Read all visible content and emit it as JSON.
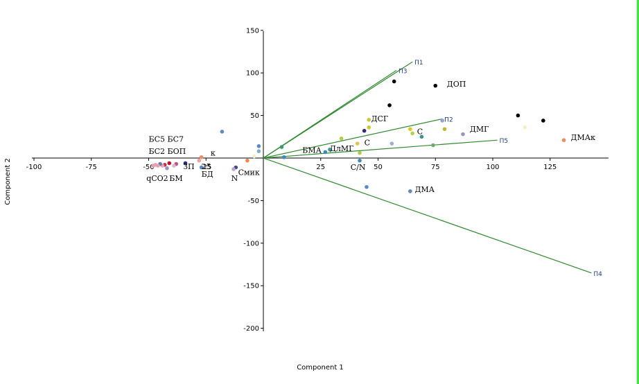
{
  "chart_data": {
    "type": "scatter",
    "title": "",
    "xlabel": "Component 1",
    "ylabel": "Component 2",
    "xlim": [
      -100,
      150
    ],
    "ylim": [
      -200,
      150
    ],
    "x_ticks": [
      -100,
      -75,
      -50,
      -25,
      25,
      50,
      75,
      100,
      125
    ],
    "y_ticks": [
      150,
      100,
      50,
      -50,
      -100,
      -150,
      -200
    ],
    "grid": false,
    "legend": "none",
    "vector_color": "#2e8b2e",
    "vectors": [
      {
        "label": "П1",
        "x": 65,
        "y": 113
      },
      {
        "label": "П3",
        "x": 58,
        "y": 103
      },
      {
        "label": "П2",
        "x": 78,
        "y": 46
      },
      {
        "label": "П5",
        "x": 102,
        "y": 21
      },
      {
        "label": "П4",
        "x": 143,
        "y": -135
      }
    ],
    "points": [
      {
        "x": 57,
        "y": 90,
        "color": "#000000"
      },
      {
        "x": 75,
        "y": 85,
        "color": "#000000"
      },
      {
        "x": 55,
        "y": 62,
        "color": "#000000"
      },
      {
        "x": 111,
        "y": 50,
        "color": "#000000"
      },
      {
        "x": 122,
        "y": 44,
        "color": "#000000"
      },
      {
        "x": 46,
        "y": 45,
        "color": "#c8c832"
      },
      {
        "x": 46,
        "y": 36,
        "color": "#c8c832"
      },
      {
        "x": 44,
        "y": 32,
        "color": "#2c2c80"
      },
      {
        "x": 78,
        "y": 44,
        "color": "#9aa0d8"
      },
      {
        "x": 64,
        "y": 34,
        "color": "#e6c41e"
      },
      {
        "x": 65,
        "y": 29,
        "color": "#b8d048"
      },
      {
        "x": 69,
        "y": 25,
        "color": "#3b8f8f"
      },
      {
        "x": 79,
        "y": 34,
        "color": "#c8b432"
      },
      {
        "x": 87,
        "y": 28,
        "color": "#9a90c8"
      },
      {
        "x": 114,
        "y": 36,
        "color": "#f5f0c8"
      },
      {
        "x": 131,
        "y": 21,
        "color": "#f08a60"
      },
      {
        "x": 56,
        "y": 17,
        "color": "#9ab0c8"
      },
      {
        "x": 74,
        "y": 15,
        "color": "#6aaa6a"
      },
      {
        "x": 34,
        "y": 23,
        "color": "#b8c848"
      },
      {
        "x": 41,
        "y": 17,
        "color": "#e8c050"
      },
      {
        "x": 42,
        "y": 6,
        "color": "#b8c848"
      },
      {
        "x": 29,
        "y": 10,
        "color": "#3a9a9a"
      },
      {
        "x": 27,
        "y": 7,
        "color": "#3a8aba"
      },
      {
        "x": 8,
        "y": 13,
        "color": "#3a9a6a"
      },
      {
        "x": 9,
        "y": 1,
        "color": "#3a8aba"
      },
      {
        "x": 42,
        "y": -3,
        "color": "#3a8aba"
      },
      {
        "x": 45,
        "y": -34,
        "color": "#5a8ac8"
      },
      {
        "x": 64,
        "y": -39,
        "color": "#5a8ac8"
      },
      {
        "x": -18,
        "y": 31,
        "color": "#5a8ac8"
      },
      {
        "x": -2,
        "y": 14,
        "color": "#5a8ac8"
      },
      {
        "x": -2,
        "y": 8,
        "color": "#7ab0c8"
      },
      {
        "x": -4,
        "y": 2,
        "color": "#f5f0c8"
      },
      {
        "x": -27,
        "y": 1,
        "color": "#f08a60"
      },
      {
        "x": -28,
        "y": -3,
        "color": "#f0a0a0"
      },
      {
        "x": -7,
        "y": -3,
        "color": "#f08a40"
      },
      {
        "x": -34,
        "y": -6,
        "color": "#2c2c80"
      },
      {
        "x": -27,
        "y": -11,
        "color": "#5a8ac8"
      },
      {
        "x": -12,
        "y": -11,
        "color": "#3a4a9a"
      },
      {
        "x": -13,
        "y": -13,
        "color": "#c8a0c8"
      },
      {
        "x": -38,
        "y": -7,
        "color": "#c05080"
      },
      {
        "x": -39,
        "y": -9,
        "color": "#d8b8d0"
      },
      {
        "x": -41,
        "y": -6,
        "color": "#c01020"
      },
      {
        "x": -43,
        "y": -8,
        "color": "#c8284a"
      },
      {
        "x": -44,
        "y": -9,
        "color": "#f0a0b0"
      },
      {
        "x": -45,
        "y": -7,
        "color": "#5080c0"
      },
      {
        "x": -46,
        "y": -9,
        "color": "#f0a0a0"
      },
      {
        "x": -47,
        "y": -8,
        "color": "#e8a0b0"
      },
      {
        "x": -48,
        "y": -9,
        "color": "#e8a0b0"
      },
      {
        "x": -42,
        "y": -12,
        "color": "#9a90c8"
      }
    ],
    "annotations": [
      {
        "text": "ДОП",
        "x": 80,
        "y": 84
      },
      {
        "text": "ДСГ",
        "x": 47,
        "y": 43
      },
      {
        "text": "С",
        "x": 67,
        "y": 28
      },
      {
        "text": "ДМГ",
        "x": 90,
        "y": 31
      },
      {
        "text": "ДМАк",
        "x": 134,
        "y": 21
      },
      {
        "text": "С",
        "x": 44,
        "y": 15
      },
      {
        "text": "БМА",
        "x": 17,
        "y": 6
      },
      {
        "text": "ДлМГ",
        "x": 29,
        "y": 8
      },
      {
        "text": "С/N",
        "x": 38,
        "y": -14
      },
      {
        "text": "ДМА",
        "x": 66,
        "y": -40
      },
      {
        "text": "БС5 БС7",
        "x": -50,
        "y": 19
      },
      {
        "text": "БС2 БОП",
        "x": -50,
        "y": 5
      },
      {
        "text": "к",
        "x": -23,
        "y": 3
      },
      {
        "text": "ЗП",
        "x": -35,
        "y": -13
      },
      {
        "text": "25",
        "x": -27,
        "y": -13
      },
      {
        "text": "БД",
        "x": -27,
        "y": -22
      },
      {
        "text": "Смик",
        "x": -11,
        "y": -20
      },
      {
        "text": "N",
        "x": -14,
        "y": -27
      },
      {
        "text": "qCO2",
        "x": -51,
        "y": -27
      },
      {
        "text": "БМ",
        "x": -41,
        "y": -27
      }
    ]
  }
}
